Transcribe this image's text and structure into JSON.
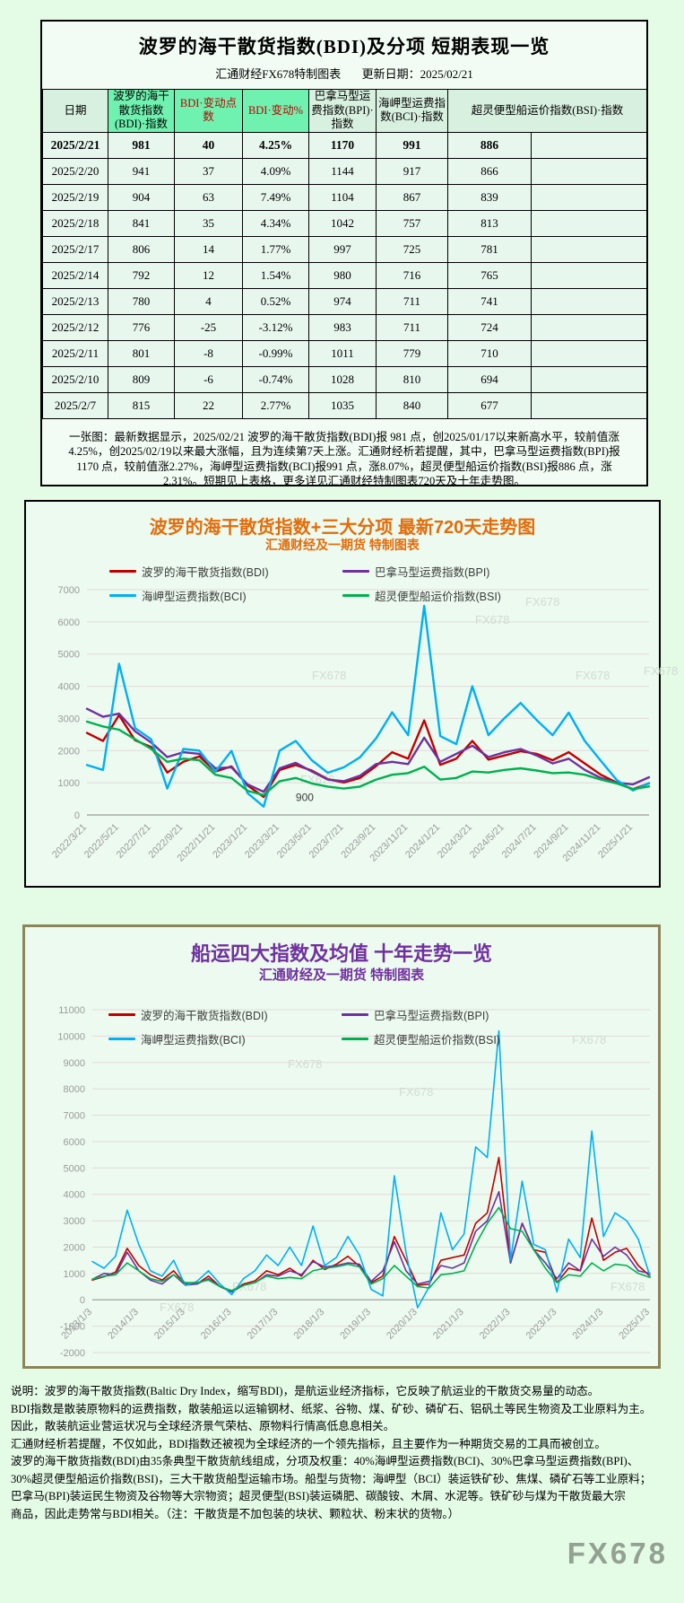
{
  "page": {
    "background": "#e4fbe6",
    "watermark": "FX678"
  },
  "table_section": {
    "title": "波罗的海干散货指数(BDI)及分项 短期表现一览",
    "source": "汇通财经FX678特制图表",
    "update_label": "更新日期：2025/02/21",
    "columns": [
      "日期",
      "波罗的海干散货指数(BDI)·指数",
      "BDI·变动点数",
      "BDI·变动%",
      "巴拿马型运费指数(BPI)·指数",
      "海岬型运费指数(BCI)·指数",
      "超灵便型船运价指数(BSI)·指数"
    ],
    "rows": [
      [
        "2025/2/21",
        "981",
        "40",
        "4.25%",
        "1170",
        "991",
        "886"
      ],
      [
        "2025/2/20",
        "941",
        "37",
        "4.09%",
        "1144",
        "917",
        "866"
      ],
      [
        "2025/2/19",
        "904",
        "63",
        "7.49%",
        "1104",
        "867",
        "839"
      ],
      [
        "2025/2/18",
        "841",
        "35",
        "4.34%",
        "1042",
        "757",
        "813"
      ],
      [
        "2025/2/17",
        "806",
        "14",
        "1.77%",
        "997",
        "725",
        "781"
      ],
      [
        "2025/2/14",
        "792",
        "12",
        "1.54%",
        "980",
        "716",
        "765"
      ],
      [
        "2025/2/13",
        "780",
        "4",
        "0.52%",
        "974",
        "711",
        "741"
      ],
      [
        "2025/2/12",
        "776",
        "-25",
        "-3.12%",
        "983",
        "711",
        "724"
      ],
      [
        "2025/2/11",
        "801",
        "-8",
        "-0.99%",
        "1011",
        "779",
        "710"
      ],
      [
        "2025/2/10",
        "809",
        "-6",
        "-0.74%",
        "1028",
        "810",
        "694"
      ],
      [
        "2025/2/7",
        "815",
        "22",
        "2.77%",
        "1035",
        "840",
        "677"
      ]
    ],
    "note_lines": [
      "一张图：最新数据显示，2025/02/21 波罗的海干散货指数(BDI)报 981 点，创2025/01/17以来新高水平，较前值涨",
      "4.25%，创2025/02/19以来最大涨幅，且为连续第7天上涨。汇通财经析若提醒，其中，巴拿马型运费指数(BPI)报",
      "1170 点，较前值涨2.27%，海岬型运费指数(BCI)报991 点，涨8.07%，超灵便型船运价指数(BSI)报886 点，涨",
      "2.31%。短期见上表格，更多详见汇通财经特制图表720天及十年走势图。"
    ]
  },
  "chart_data": [
    {
      "type": "line",
      "title": "波罗的海干散货指数+三大分项  最新720天走势图",
      "subtitle": "汇通财经及一期货 特制图表",
      "watermark": "FX678",
      "ylim": [
        0,
        7000
      ],
      "ytick_step": 1000,
      "grid": true,
      "legend_position": "top",
      "x_tick_every": 2,
      "x_ticks": [
        "2022/3/21",
        "2022/5/21",
        "2022/7/21",
        "2022/9/21",
        "2022/11/21",
        "2023/1/21",
        "2023/3/21",
        "2023/5/21",
        "2023/7/21",
        "2023/9/21",
        "2023/11/21",
        "2024/1/21",
        "2024/3/21",
        "2024/5/21",
        "2024/7/21",
        "2024/9/21",
        "2024/11/21",
        "2025/1/21"
      ],
      "x": [
        "2022/3",
        "2022/4",
        "2022/5",
        "2022/6",
        "2022/7",
        "2022/8",
        "2022/9",
        "2022/10",
        "2022/11",
        "2022/12",
        "2023/1",
        "2023/2",
        "2023/3",
        "2023/4",
        "2023/5",
        "2023/6",
        "2023/7",
        "2023/8",
        "2023/9",
        "2023/10",
        "2023/11",
        "2023/12",
        "2024/1",
        "2024/2",
        "2024/3",
        "2024/4",
        "2024/5",
        "2024/6",
        "2024/7",
        "2024/8",
        "2024/9",
        "2024/10",
        "2024/11",
        "2024/12",
        "2025/1",
        "2025/2"
      ],
      "annotation": {
        "text": "900",
        "x_index": 13,
        "value": 430
      },
      "watermarks": [
        {
          "x": 0.78,
          "y": 0.07
        },
        {
          "x": 0.69,
          "y": 0.15
        },
        {
          "x": 0.4,
          "y": 0.4
        },
        {
          "x": 0.87,
          "y": 0.4
        },
        {
          "x": 0.38,
          "y": 0.86
        },
        {
          "x": 0.99,
          "y": 0.38
        }
      ],
      "series": [
        {
          "name": "波罗的海干散货指数(BDI)",
          "color": "#c00000",
          "values": [
            2550,
            2300,
            3100,
            2320,
            2110,
            1320,
            1650,
            1820,
            1350,
            1510,
            920,
            560,
            1400,
            1550,
            1380,
            1110,
            1010,
            1150,
            1520,
            1950,
            1750,
            2940,
            1560,
            1750,
            2300,
            1720,
            1850,
            1980,
            1900,
            1700,
            1950,
            1600,
            1250,
            1000,
            800,
            981
          ]
        },
        {
          "name": "巴拿马型运费指数(BPI)",
          "color": "#7030a0",
          "values": [
            3300,
            3050,
            3150,
            2600,
            2250,
            1800,
            1950,
            1900,
            1450,
            1480,
            950,
            720,
            1450,
            1620,
            1350,
            1100,
            1050,
            1220,
            1580,
            1650,
            1580,
            2400,
            1650,
            1900,
            2150,
            1800,
            1950,
            2050,
            1850,
            1600,
            1750,
            1400,
            1150,
            1000,
            950,
            1170
          ]
        },
        {
          "name": "海岬型运费指数(BCI)",
          "color": "#00b0f0",
          "values": [
            1550,
            1400,
            4700,
            2700,
            2350,
            820,
            2050,
            2000,
            1350,
            1990,
            680,
            260,
            2000,
            2300,
            1700,
            1310,
            1480,
            1790,
            2380,
            3190,
            2480,
            6500,
            2450,
            2200,
            4000,
            2480,
            3010,
            3480,
            2950,
            2480,
            3180,
            2300,
            1680,
            1080,
            760,
            991
          ]
        },
        {
          "name": "超灵便型船运价指数(BSI)",
          "color": "#00b050",
          "values": [
            2900,
            2750,
            2650,
            2350,
            2050,
            1650,
            1750,
            1700,
            1250,
            1150,
            750,
            620,
            1050,
            1150,
            980,
            880,
            820,
            880,
            1100,
            1250,
            1300,
            1500,
            1100,
            1150,
            1350,
            1320,
            1400,
            1450,
            1380,
            1300,
            1320,
            1250,
            1100,
            980,
            800,
            886
          ]
        }
      ]
    },
    {
      "type": "line",
      "title": "船运四大指数及均值 十年走势一览",
      "subtitle": "汇通财经及一期货 特制图表",
      "watermark": "FX678",
      "ylim": [
        -2000,
        11000
      ],
      "ytick_step": 1000,
      "grid": true,
      "legend_position": "top",
      "x_tick_every": 4,
      "x_ticks": [
        "2013/1/3",
        "2014/1/3",
        "2015/1/3",
        "2016/1/3",
        "2017/1/3",
        "2018/1/3",
        "2019/1/3",
        "2020/1/3",
        "2021/1/3",
        "2022/1/3",
        "2023/1/3",
        "2024/1/3",
        "2025/1/3"
      ],
      "x": [
        "2013/1",
        "2013/4",
        "2013/7",
        "2013/10",
        "2014/1",
        "2014/4",
        "2014/7",
        "2014/10",
        "2015/1",
        "2015/4",
        "2015/7",
        "2015/10",
        "2016/1",
        "2016/4",
        "2016/7",
        "2016/10",
        "2017/1",
        "2017/4",
        "2017/7",
        "2017/10",
        "2018/1",
        "2018/4",
        "2018/7",
        "2018/10",
        "2019/1",
        "2019/4",
        "2019/7",
        "2019/10",
        "2020/1",
        "2020/4",
        "2020/7",
        "2020/10",
        "2021/1",
        "2021/4",
        "2021/7",
        "2021/10",
        "2022/1",
        "2022/4",
        "2022/7",
        "2022/10",
        "2023/1",
        "2023/4",
        "2023/7",
        "2023/10",
        "2024/1",
        "2024/4",
        "2024/7",
        "2024/10",
        "2025/1"
      ],
      "watermarks": [
        {
          "x": 0.35,
          "y": 0.17
        },
        {
          "x": 0.55,
          "y": 0.25
        },
        {
          "x": 0.25,
          "y": 0.82
        },
        {
          "x": 0.86,
          "y": 0.1
        },
        {
          "x": 0.93,
          "y": 0.82
        },
        {
          "x": 0.12,
          "y": 0.88
        }
      ],
      "series": [
        {
          "name": "波罗的海干散货指数(BDI)",
          "color": "#c00000",
          "values": [
            750,
            880,
            1050,
            1950,
            1300,
            950,
            750,
            1100,
            600,
            600,
            900,
            500,
            310,
            600,
            720,
            1100,
            950,
            1200,
            900,
            1500,
            1150,
            1350,
            1650,
            1270,
            650,
            900,
            2400,
            1500,
            550,
            600,
            1500,
            1600,
            1700,
            2900,
            3300,
            5400,
            1400,
            2900,
            1900,
            1800,
            650,
            1200,
            1100,
            3100,
            1500,
            1800,
            1950,
            1300,
            900
          ]
        },
        {
          "name": "巴拿马型运费指数(BPI)",
          "color": "#7030a0",
          "values": [
            780,
            1000,
            950,
            1800,
            1100,
            750,
            600,
            950,
            560,
            600,
            800,
            500,
            300,
            550,
            650,
            950,
            900,
            1100,
            950,
            1450,
            1250,
            1300,
            1400,
            1350,
            700,
            1100,
            2200,
            1100,
            600,
            700,
            1300,
            1200,
            1400,
            2600,
            3000,
            4100,
            1400,
            2900,
            1900,
            1400,
            800,
            1400,
            1100,
            2300,
            1650,
            2000,
            1700,
            1100,
            1000
          ]
        },
        {
          "name": "海岬型运费指数(BCI)",
          "color": "#00b0f0",
          "values": [
            1450,
            1200,
            1650,
            3400,
            2100,
            1100,
            900,
            1500,
            550,
            700,
            1100,
            600,
            200,
            800,
            1100,
            1700,
            1300,
            2000,
            1300,
            2800,
            1300,
            1600,
            2400,
            1700,
            400,
            150,
            4700,
            1800,
            -300,
            500,
            3300,
            1900,
            2500,
            5800,
            5400,
            10200,
            1500,
            4500,
            2100,
            1900,
            300,
            2300,
            1600,
            6400,
            2400,
            3300,
            3000,
            2300,
            900
          ]
        },
        {
          "name": "超灵便型船运价指数(BSI)",
          "color": "#00b050",
          "values": [
            780,
            900,
            950,
            1400,
            1100,
            800,
            700,
            950,
            650,
            650,
            750,
            500,
            350,
            550,
            650,
            900,
            800,
            850,
            800,
            1100,
            1200,
            1250,
            1350,
            1250,
            600,
            800,
            1300,
            900,
            500,
            450,
            950,
            1000,
            1100,
            2100,
            2900,
            3500,
            2700,
            2600,
            1900,
            1200,
            650,
            950,
            900,
            1400,
            1100,
            1350,
            1300,
            1000,
            850
          ]
        }
      ]
    }
  ],
  "footer": {
    "lines": [
      "说明：波罗的海干散货指数(Baltic Dry Index，缩写BDI)，是航运业经济指标，它反映了航运业的干散货交易量的动态。",
      "BDI指数是散装原物料的运费指数，散装船运以运输钢材、纸浆、谷物、煤、矿砂、磷矿石、铝矾土等民生物资及工业原料为主。",
      "因此，散装航运业营运状况与全球经济景气荣枯、原物料行情高低息息相关。",
      "汇通财经析若提醒，不仅如此，BDI指数还被视为全球经济的一个领先指标，且主要作为一种期货交易的工具而被创立。",
      "波罗的海干散货指数(BDI)由35条典型干散货航线组成，分项及权重：40%海岬型运费指数(BCI)、30%巴拿马型运费指数(BPI)、",
      "30%超灵便型船运价指数(BSI)，三大干散货船型运输市场。船型与货物：海岬型（BCI）装运铁矿砂、焦煤、磷矿石等工业原料；",
      "巴拿马(BPI)装运民生物资及谷物等大宗物资；超灵便型(BSI)装运磷肥、碳酸铵、木屑、水泥等。铁矿砂与煤为干散货最大宗",
      "商品，因此走势常与BDI相关。（注：干散货是不加包装的块状、颗粒状、粉末状的货物。）"
    ],
    "watermark": "FX678"
  }
}
